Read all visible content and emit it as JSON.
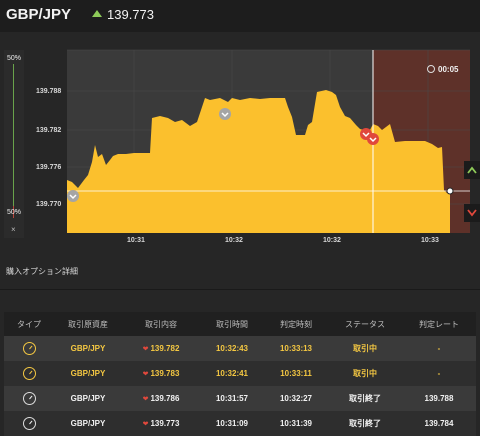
{
  "header": {
    "pair": "GBP/JPY",
    "current_price": "139.773",
    "trend": "up-arrow-icon"
  },
  "gauge": {
    "top_label": "50%",
    "bottom_label": "50%",
    "close_label": "×"
  },
  "timer": {
    "label": "00:05"
  },
  "chart_data": {
    "type": "area",
    "y_ticks": [
      "139.788",
      "139.782",
      "139.776",
      "139.770"
    ],
    "x_ticks": [
      "10:31",
      "10:32",
      "10:32",
      "10:33"
    ],
    "ylim": [
      139.765,
      139.794
    ],
    "color": "#fbc02d",
    "current_price": 139.773
  },
  "section_title": "購入オプション詳細",
  "table": {
    "headers": [
      "タイプ",
      "取引原資産",
      "取引内容",
      "取引時間",
      "判定時刻",
      "ステータス",
      "判定レート"
    ],
    "rows": [
      {
        "asset": "GBP/JPY",
        "entry": "139.782",
        "time": "10:32:43",
        "judge": "10:33:13",
        "status": "取引中",
        "rate": "-",
        "active": true
      },
      {
        "asset": "GBP/JPY",
        "entry": "139.783",
        "time": "10:32:41",
        "judge": "10:33:11",
        "status": "取引中",
        "rate": "-",
        "active": true
      },
      {
        "asset": "GBP/JPY",
        "entry": "139.786",
        "time": "10:31:57",
        "judge": "10:32:27",
        "status": "取引終了",
        "rate": "139.788",
        "active": false
      },
      {
        "asset": "GBP/JPY",
        "entry": "139.773",
        "time": "10:31:09",
        "judge": "10:31:39",
        "status": "取引終了",
        "rate": "139.784",
        "active": false
      }
    ]
  },
  "colors": {
    "up": "#8ecb59",
    "down": "#e0483c",
    "accent": "#f5c842",
    "area": "#fbc02d"
  }
}
